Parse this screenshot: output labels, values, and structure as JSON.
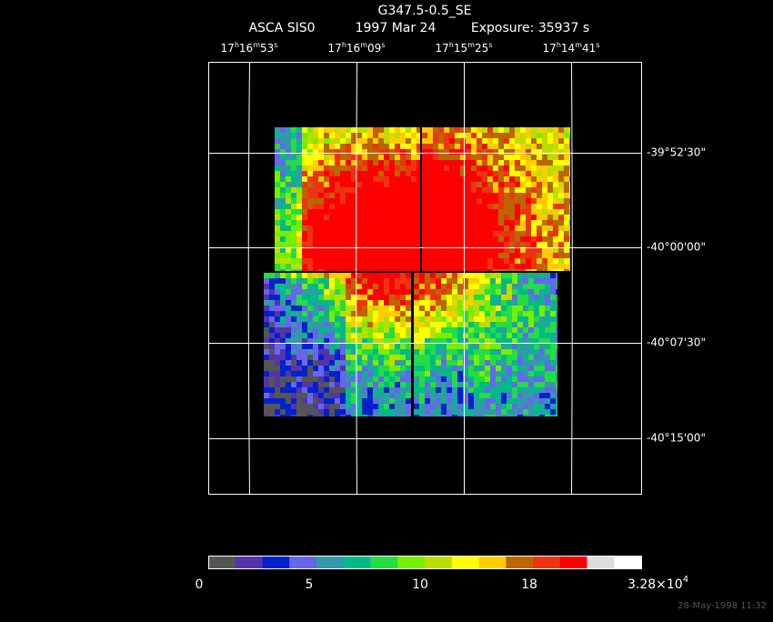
{
  "header": {
    "title": "G347.5-0.5_SE",
    "instrument": "ASCA SIS0",
    "date": "1997 Mar 24",
    "exposure": "Exposure: 35937 s"
  },
  "ra_labels": [
    [
      "17",
      "h",
      "16",
      "m",
      "53",
      "s"
    ],
    [
      "17",
      "h",
      "16",
      "m",
      "09",
      "s"
    ],
    [
      "17",
      "h",
      "15",
      "m",
      "25",
      "s"
    ],
    [
      "17",
      "h",
      "14",
      "m",
      "41",
      "s"
    ]
  ],
  "dec_labels": [
    "-39°52'30\"",
    "-40°00'00\"",
    "-40°07'30\"",
    "-40°15'00\""
  ],
  "colorbar": {
    "colors": [
      "#555555",
      "#5533aa",
      "#0022cc",
      "#6666ee",
      "#3399aa",
      "#00bb88",
      "#22dd44",
      "#77ee00",
      "#bbdd00",
      "#ffff00",
      "#ffcc00",
      "#bb6600",
      "#ee3311",
      "#ff0000",
      "#dddddd",
      "#ffffff"
    ],
    "labels": [
      "0",
      "5",
      "10",
      "18"
    ],
    "max_label": {
      "mantissa": "3.28×10",
      "exponent": "4"
    }
  },
  "timestamp": "28-May-1998 11:32"
}
